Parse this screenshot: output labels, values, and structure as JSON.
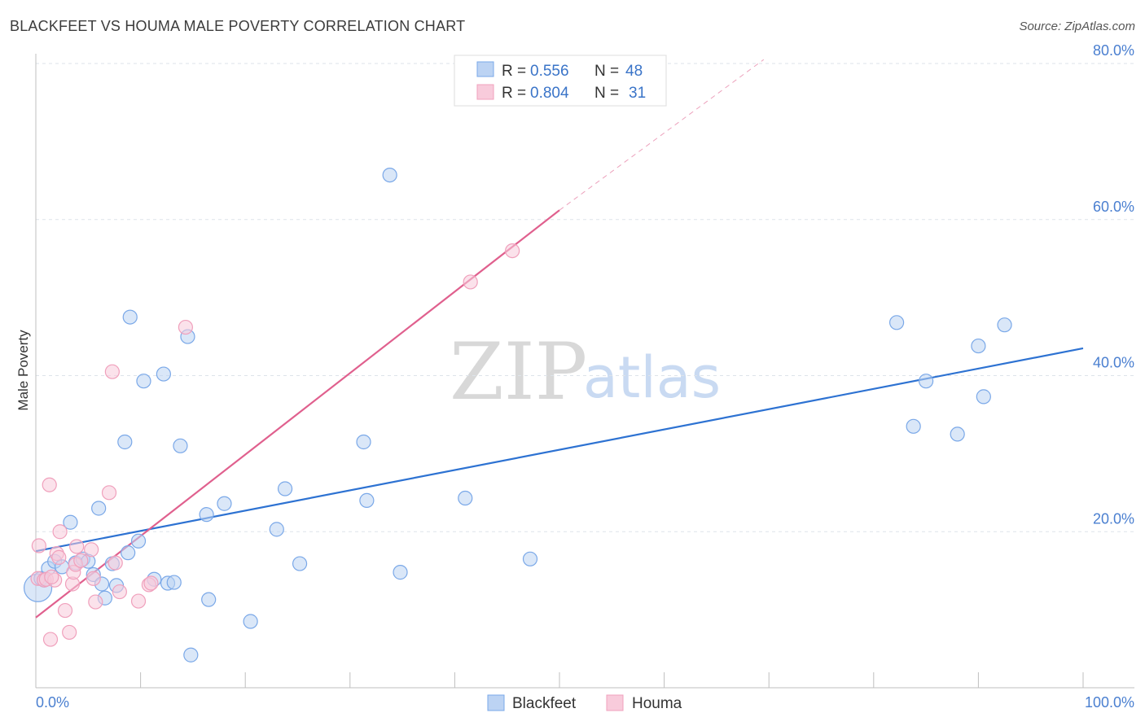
{
  "chart_data": {
    "type": "scatter",
    "title": "BLACKFEET VS HOUMA MALE POVERTY CORRELATION CHART",
    "source": "Source: ZipAtlas.com",
    "xlabel": "",
    "ylabel": "Male Poverty",
    "xlim": [
      0,
      100
    ],
    "ylim": [
      0,
      83
    ],
    "x_ticks_labels": {
      "left": "0.0%",
      "right": "100.0%"
    },
    "y_ticks": [
      {
        "value": 20,
        "label": "20.0%"
      },
      {
        "value": 40,
        "label": "40.0%"
      },
      {
        "value": 60,
        "label": "60.0%"
      },
      {
        "value": 80,
        "label": "80.0%"
      }
    ],
    "legend": {
      "entries": [
        {
          "series": "Blackfeet",
          "r_label": "R =",
          "r": "0.556",
          "n_label": "N =",
          "n": "48"
        },
        {
          "series": "Houma",
          "r_label": "R =",
          "r": "0.804",
          "n_label": "N =",
          "n": "31"
        }
      ]
    },
    "watermark": {
      "zip": "ZIP",
      "atlas": "atlas"
    },
    "series": [
      {
        "name": "Blackfeet",
        "color": "#7aa8e8",
        "fill": "#bcd3f3",
        "line_color": "#2d72d2",
        "trend": {
          "x0": 0,
          "y0": 17.5,
          "x1": 100,
          "y1": 43.5
        },
        "points": [
          [
            0.2,
            12.8
          ],
          [
            0.5,
            14.0
          ],
          [
            1.2,
            15.3
          ],
          [
            1.8,
            16.2
          ],
          [
            2.5,
            15.5
          ],
          [
            3.3,
            21.2
          ],
          [
            3.8,
            16.0
          ],
          [
            4.5,
            16.5
          ],
          [
            5.0,
            16.2
          ],
          [
            5.5,
            14.5
          ],
          [
            6.0,
            23.0
          ],
          [
            6.3,
            13.3
          ],
          [
            6.6,
            11.5
          ],
          [
            7.3,
            15.9
          ],
          [
            7.7,
            13.1
          ],
          [
            8.5,
            31.5
          ],
          [
            8.8,
            17.3
          ],
          [
            9.0,
            47.5
          ],
          [
            9.8,
            18.8
          ],
          [
            10.3,
            39.3
          ],
          [
            11.3,
            13.9
          ],
          [
            12.2,
            40.2
          ],
          [
            12.6,
            13.4
          ],
          [
            13.2,
            13.5
          ],
          [
            13.8,
            31.0
          ],
          [
            14.5,
            45.0
          ],
          [
            14.8,
            4.2
          ],
          [
            16.3,
            22.2
          ],
          [
            16.5,
            11.3
          ],
          [
            18.0,
            23.6
          ],
          [
            20.5,
            8.5
          ],
          [
            23.0,
            20.3
          ],
          [
            23.8,
            25.5
          ],
          [
            25.2,
            15.9
          ],
          [
            31.3,
            31.5
          ],
          [
            31.6,
            24.0
          ],
          [
            33.8,
            65.7
          ],
          [
            34.8,
            14.8
          ],
          [
            41.0,
            24.3
          ],
          [
            47.2,
            16.5
          ],
          [
            82.2,
            46.8
          ],
          [
            83.8,
            33.5
          ],
          [
            85.0,
            39.3
          ],
          [
            88.0,
            32.5
          ],
          [
            90.0,
            43.8
          ],
          [
            90.5,
            37.3
          ],
          [
            92.5,
            46.5
          ],
          [
            0.8,
            13.8
          ]
        ]
      },
      {
        "name": "Houma",
        "color": "#f0a0bc",
        "fill": "#f8cbdb",
        "line_color": "#e0608e",
        "trend": {
          "x0": 0,
          "y0": 9.0,
          "x1": 50,
          "y1": 61.2
        },
        "trend_dashed_to": {
          "x": 69.5,
          "y": 80.5
        },
        "points": [
          [
            0.2,
            14.0
          ],
          [
            0.3,
            18.2
          ],
          [
            0.8,
            13.8
          ],
          [
            1.0,
            13.9
          ],
          [
            1.3,
            26.0
          ],
          [
            1.4,
            6.2
          ],
          [
            1.8,
            13.8
          ],
          [
            2.0,
            17.2
          ],
          [
            2.2,
            16.7
          ],
          [
            2.3,
            20.0
          ],
          [
            2.8,
            9.9
          ],
          [
            3.2,
            7.1
          ],
          [
            3.5,
            13.3
          ],
          [
            3.6,
            14.8
          ],
          [
            3.8,
            15.8
          ],
          [
            3.9,
            18.1
          ],
          [
            4.3,
            16.3
          ],
          [
            5.3,
            17.7
          ],
          [
            5.5,
            14.0
          ],
          [
            5.7,
            11.0
          ],
          [
            7.0,
            25.0
          ],
          [
            7.3,
            40.5
          ],
          [
            7.6,
            16.0
          ],
          [
            8.0,
            12.3
          ],
          [
            9.8,
            11.1
          ],
          [
            10.8,
            13.2
          ],
          [
            11.0,
            13.4
          ],
          [
            14.3,
            46.2
          ],
          [
            41.5,
            52.0
          ],
          [
            45.5,
            56.0
          ],
          [
            1.5,
            14.2
          ]
        ]
      }
    ]
  }
}
